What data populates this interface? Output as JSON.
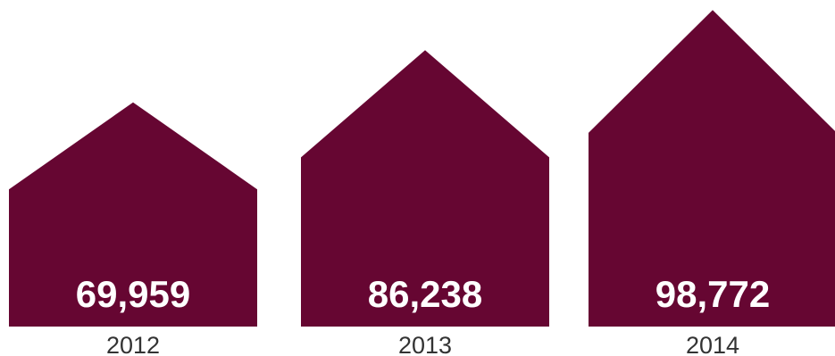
{
  "chart_data": {
    "type": "bar",
    "title": "",
    "xlabel": "",
    "ylabel": "",
    "categories": [
      "2012",
      "2013",
      "2014"
    ],
    "values": [
      69959,
      86238,
      98772
    ],
    "value_labels": [
      "69,959",
      "86,238",
      "98,772"
    ],
    "bar_shape": "house",
    "color": "#660632",
    "value_label_color": "#ffffff",
    "category_label_color": "#333333",
    "grid": false,
    "legend": "none"
  }
}
